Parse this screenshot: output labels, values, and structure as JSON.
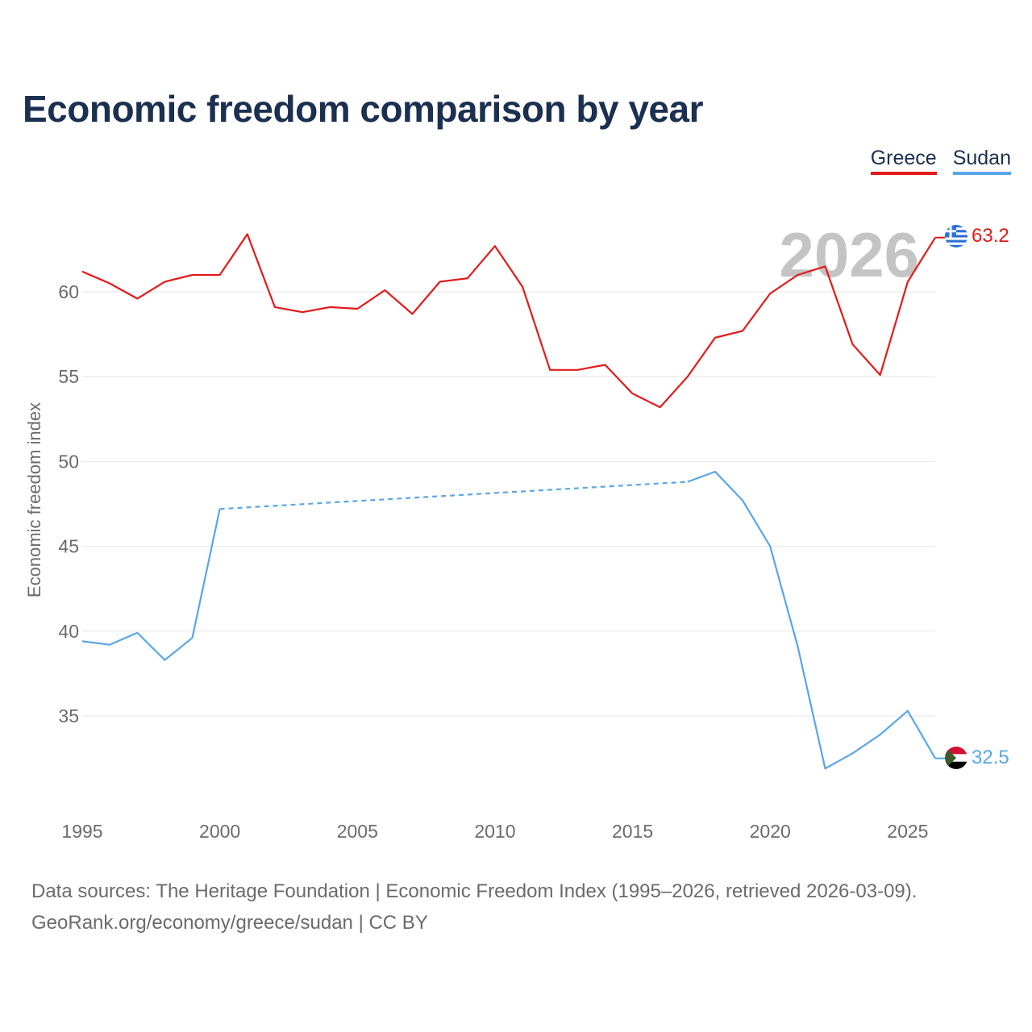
{
  "title": "Economic freedom comparison by year",
  "legend": [
    {
      "label": "Greece",
      "color": "#e21a1a"
    },
    {
      "label": "Sudan",
      "color": "#5aa6e6"
    }
  ],
  "footer": {
    "line1": "Data sources: The Heritage Foundation | Economic Freedom Index (1995–2026, retrieved 2026-03-09).",
    "line2": "GeoRank.org/economy/greece/sudan | CC BY"
  },
  "chart_data": {
    "type": "line",
    "title": "Economic freedom comparison by year",
    "xlabel": "",
    "ylabel": "Economic freedom index",
    "year_watermark": "2026",
    "xlim": [
      1995,
      2026
    ],
    "ylim": [
      30,
      65
    ],
    "xticks": [
      1995,
      2000,
      2005,
      2010,
      2015,
      2020,
      2025
    ],
    "yticks": [
      35,
      40,
      45,
      50,
      55,
      60
    ],
    "grid": true,
    "series": [
      {
        "name": "Greece",
        "color": "#e21a1a",
        "end_label": "63.2",
        "flag": "greece-flag-icon",
        "points": [
          [
            1995,
            61.2
          ],
          [
            1996,
            60.5
          ],
          [
            1997,
            59.6
          ],
          [
            1998,
            60.6
          ],
          [
            1999,
            61.0
          ],
          [
            2000,
            61.0
          ],
          [
            2001,
            63.4
          ],
          [
            2002,
            59.1
          ],
          [
            2003,
            58.8
          ],
          [
            2004,
            59.1
          ],
          [
            2005,
            59.0
          ],
          [
            2006,
            60.1
          ],
          [
            2007,
            58.7
          ],
          [
            2008,
            60.6
          ],
          [
            2009,
            60.8
          ],
          [
            2010,
            62.7
          ],
          [
            2011,
            60.3
          ],
          [
            2012,
            55.4
          ],
          [
            2013,
            55.4
          ],
          [
            2014,
            55.7
          ],
          [
            2015,
            54.0
          ],
          [
            2016,
            53.2
          ],
          [
            2017,
            55.0
          ],
          [
            2018,
            57.3
          ],
          [
            2019,
            57.7
          ],
          [
            2020,
            59.9
          ],
          [
            2021,
            61.0
          ],
          [
            2022,
            61.5
          ],
          [
            2023,
            56.9
          ],
          [
            2024,
            55.1
          ],
          [
            2025,
            60.6
          ],
          [
            2026,
            63.2
          ]
        ]
      },
      {
        "name": "Sudan",
        "color": "#5aa6e6",
        "end_label": "32.5",
        "flag": "sudan-flag-icon",
        "points": [
          [
            1995,
            39.4
          ],
          [
            1996,
            39.2
          ],
          [
            1997,
            39.9
          ],
          [
            1998,
            38.3
          ],
          [
            1999,
            39.6
          ],
          [
            2000,
            47.2
          ],
          [
            2017,
            48.8
          ],
          [
            2018,
            49.4
          ],
          [
            2019,
            47.7
          ],
          [
            2020,
            45.0
          ],
          [
            2021,
            39.1
          ],
          [
            2022,
            31.9
          ],
          [
            2023,
            32.8
          ],
          [
            2024,
            33.9
          ],
          [
            2025,
            35.3
          ],
          [
            2026,
            32.5
          ]
        ],
        "interpolated_segments": [
          [
            2000,
            2017
          ]
        ]
      }
    ]
  }
}
